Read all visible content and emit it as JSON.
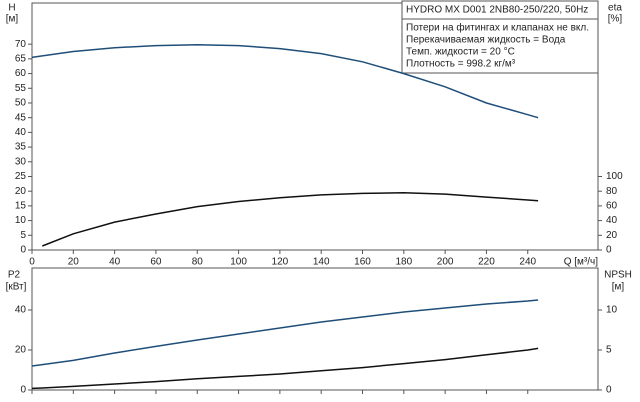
{
  "chart_data": [
    {
      "type": "line",
      "y_label": "H",
      "y_unit": "[м]",
      "y2_label": "eta",
      "y2_unit": "[%]",
      "x_label": "Q [м³/ч]",
      "annotations": [
        "HYDRO MX D001 2NB80-250/220, 50Hz",
        "Потери на фитингах и клапанах не вкл.",
        "Перекачиваемая жидкость = Вода",
        "Темп. жидкости = 20 °C",
        "Плотность = 998.2 кг/м³"
      ],
      "x": [
        0,
        5,
        20,
        40,
        60,
        80,
        100,
        120,
        140,
        160,
        180,
        200,
        220,
        240,
        245
      ],
      "xlim": [
        0,
        274
      ],
      "xticks": [
        0,
        20,
        40,
        60,
        80,
        100,
        120,
        140,
        160,
        180,
        200,
        220,
        240
      ],
      "ylim": [
        0,
        84
      ],
      "yticks": [
        0,
        5,
        10,
        15,
        20,
        25,
        30,
        35,
        40,
        45,
        50,
        55,
        60,
        65,
        70
      ],
      "y2lim": [
        0,
        336
      ],
      "y2ticks": [
        0,
        20,
        40,
        60,
        80,
        100
      ],
      "show_xtick_labels": true,
      "series": [
        {
          "name": "H",
          "color": "#1f4e79",
          "values": [
            65.5,
            66,
            67.5,
            68.8,
            69.5,
            69.8,
            69.5,
            68.5,
            66.8,
            64,
            60,
            55.5,
            50,
            46,
            45
          ]
        },
        {
          "name": "eta",
          "color": "#111111",
          "axis": "y2",
          "values": [
            null,
            5.5,
            22,
            38,
            49,
            59,
            66,
            71,
            75,
            77,
            78,
            76,
            72,
            68,
            67
          ]
        }
      ]
    },
    {
      "type": "line",
      "y_label": "P2",
      "y_unit": "[кВт]",
      "y2_label": "NPSH",
      "y2_unit": "[м]",
      "x": [
        0,
        5,
        20,
        40,
        60,
        80,
        100,
        120,
        140,
        160,
        180,
        200,
        220,
        240,
        245
      ],
      "xlim": [
        0,
        274
      ],
      "xticks": [
        0,
        20,
        40,
        60,
        80,
        100,
        120,
        140,
        160,
        180,
        200,
        220,
        240
      ],
      "ylim": [
        0,
        61
      ],
      "yticks": [
        0,
        20,
        40
      ],
      "y2lim": [
        0,
        15.25
      ],
      "y2ticks": [
        0,
        5,
        10
      ],
      "show_xtick_labels": false,
      "series": [
        {
          "name": "P2",
          "color": "#1f4e79",
          "values": [
            12,
            12.7,
            14.8,
            18.5,
            21.8,
            25,
            28,
            31,
            34,
            36.5,
            39,
            41,
            43,
            44.5,
            45
          ]
        },
        {
          "name": "NPSH",
          "color": "#111111",
          "axis": "y2",
          "values": [
            0.2,
            0.25,
            0.45,
            0.75,
            1.05,
            1.4,
            1.7,
            2.0,
            2.4,
            2.8,
            3.3,
            3.8,
            4.4,
            5.0,
            5.2
          ]
        }
      ]
    }
  ]
}
